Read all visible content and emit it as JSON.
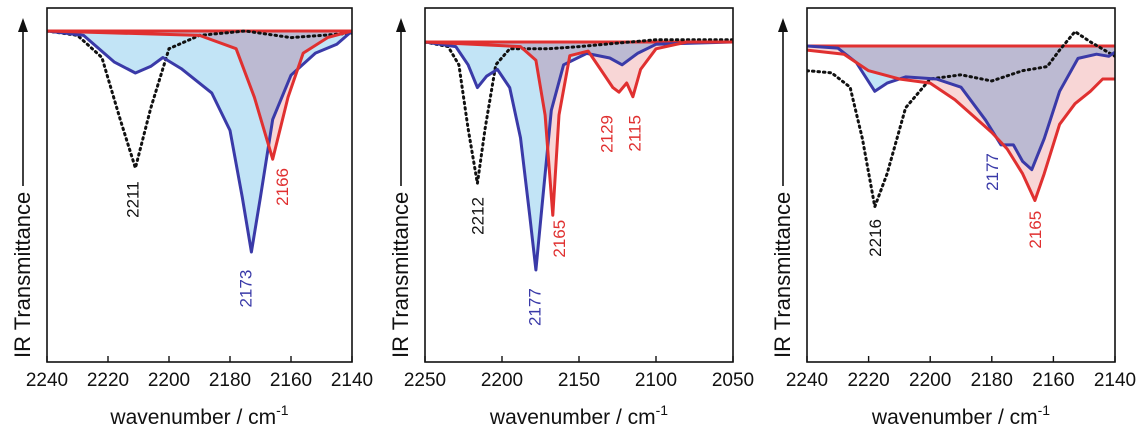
{
  "colors": {
    "blue": "#3a3aa8",
    "red": "#e03030",
    "black": "#111111",
    "blue_fill": "#bfe3f5",
    "red_fill": "#f6c8c8",
    "overlap_fill": "#b7b7d2"
  },
  "chart_data": [
    {
      "type": "line",
      "xlabel": "wavenumber / cm",
      "xlabel_sup": "-1",
      "ylabel": "IR Transmittance",
      "xlim": [
        2240,
        2140
      ],
      "ticks": [
        2240,
        2220,
        2200,
        2180,
        2160,
        2140
      ],
      "tick_labels": [
        "2240",
        "2220",
        "2200",
        "2180",
        "2160",
        "2140"
      ],
      "baseline": 0,
      "series": [
        {
          "color": "black",
          "style": "dotted",
          "points": [
            [
              2240,
              0
            ],
            [
              2230,
              -0.02
            ],
            [
              2222,
              -0.12
            ],
            [
              2216,
              -0.4
            ],
            [
              2211,
              -0.62
            ],
            [
              2206,
              -0.35
            ],
            [
              2200,
              -0.08
            ],
            [
              2190,
              -0.02
            ],
            [
              2175,
              0
            ],
            [
              2160,
              -0.03
            ],
            [
              2140,
              -0.01
            ]
          ]
        },
        {
          "color": "red",
          "style": "solid",
          "fill": "red_fill",
          "points": [
            [
              2240,
              0
            ],
            [
              2190,
              -0.02
            ],
            [
              2178,
              -0.08
            ],
            [
              2172,
              -0.3
            ],
            [
              2166,
              -0.58
            ],
            [
              2161,
              -0.3
            ],
            [
              2156,
              -0.1
            ],
            [
              2148,
              -0.03
            ],
            [
              2140,
              0
            ]
          ]
        },
        {
          "color": "blue",
          "style": "solid",
          "fill": "blue_fill",
          "points": [
            [
              2240,
              0
            ],
            [
              2228,
              -0.02
            ],
            [
              2218,
              -0.14
            ],
            [
              2211,
              -0.19
            ],
            [
              2206,
              -0.16
            ],
            [
              2202,
              -0.12
            ],
            [
              2196,
              -0.17
            ],
            [
              2186,
              -0.28
            ],
            [
              2180,
              -0.45
            ],
            [
              2176,
              -0.75
            ],
            [
              2173,
              -1.0
            ],
            [
              2170,
              -0.75
            ],
            [
              2166,
              -0.4
            ],
            [
              2160,
              -0.2
            ],
            [
              2152,
              -0.1
            ],
            [
              2145,
              -0.06
            ],
            [
              2140,
              0
            ]
          ]
        }
      ],
      "annotations": [
        {
          "text": "2211",
          "color": "black",
          "x": 2212,
          "y": -0.68
        },
        {
          "text": "2166",
          "color": "red",
          "x": 2163,
          "y": -0.62
        },
        {
          "text": "2173",
          "color": "blue",
          "x": 2175,
          "y": -1.08
        }
      ]
    },
    {
      "type": "line",
      "xlabel": "wavenumber / cm",
      "xlabel_sup": "-1",
      "ylabel": "IR Transmittance",
      "xlim": [
        2250,
        2050
      ],
      "ticks": [
        2250,
        2200,
        2150,
        2100,
        2050
      ],
      "tick_labels": [
        "2250",
        "2200",
        "2150",
        "2100",
        "2050"
      ],
      "baseline": 0,
      "series": [
        {
          "color": "black",
          "style": "dotted",
          "points": [
            [
              2250,
              0
            ],
            [
              2235,
              -0.02
            ],
            [
              2228,
              -0.1
            ],
            [
              2222,
              -0.38
            ],
            [
              2216,
              -0.62
            ],
            [
              2211,
              -0.38
            ],
            [
              2204,
              -0.1
            ],
            [
              2195,
              -0.03
            ],
            [
              2170,
              -0.03
            ],
            [
              2150,
              -0.02
            ],
            [
              2100,
              0.01
            ],
            [
              2050,
              0.01
            ]
          ]
        },
        {
          "color": "red",
          "style": "solid",
          "fill": "red_fill",
          "points": [
            [
              2250,
              0
            ],
            [
              2188,
              -0.02
            ],
            [
              2178,
              -0.08
            ],
            [
              2172,
              -0.32
            ],
            [
              2167,
              -0.76
            ],
            [
              2163,
              -0.32
            ],
            [
              2156,
              -0.06
            ],
            [
              2144,
              -0.04
            ],
            [
              2136,
              -0.12
            ],
            [
              2128,
              -0.2
            ],
            [
              2124,
              -0.22
            ],
            [
              2119,
              -0.18
            ],
            [
              2115,
              -0.24
            ],
            [
              2110,
              -0.12
            ],
            [
              2100,
              -0.03
            ],
            [
              2080,
              0
            ],
            [
              2050,
              0
            ]
          ]
        },
        {
          "color": "blue",
          "style": "solid",
          "fill": "blue_fill",
          "points": [
            [
              2250,
              0
            ],
            [
              2230,
              -0.02
            ],
            [
              2222,
              -0.1
            ],
            [
              2216,
              -0.2
            ],
            [
              2210,
              -0.15
            ],
            [
              2203,
              -0.12
            ],
            [
              2195,
              -0.2
            ],
            [
              2188,
              -0.42
            ],
            [
              2182,
              -0.76
            ],
            [
              2178,
              -1.0
            ],
            [
              2174,
              -0.72
            ],
            [
              2168,
              -0.3
            ],
            [
              2160,
              -0.1
            ],
            [
              2145,
              -0.05
            ],
            [
              2130,
              -0.07
            ],
            [
              2122,
              -0.1
            ],
            [
              2112,
              -0.05
            ],
            [
              2100,
              -0.01
            ],
            [
              2050,
              0
            ]
          ]
        }
      ],
      "annotations": [
        {
          "text": "2212",
          "color": "black",
          "x": 2216,
          "y": -0.68
        },
        {
          "text": "2177",
          "color": "blue",
          "x": 2179,
          "y": -1.08
        },
        {
          "text": "2165",
          "color": "red",
          "x": 2163,
          "y": -0.78
        },
        {
          "text": "2129",
          "color": "red",
          "x": 2132,
          "y": -0.32
        },
        {
          "text": "2115",
          "color": "red",
          "x": 2114,
          "y": -0.32
        }
      ]
    },
    {
      "type": "line",
      "xlabel": "wavenumber / cm",
      "xlabel_sup": "-1",
      "ylabel": "IR Transmittance",
      "xlim": [
        2240,
        2140
      ],
      "ticks": [
        2240,
        2220,
        2200,
        2180,
        2160,
        2140
      ],
      "tick_labels": [
        "2240",
        "2220",
        "2200",
        "2180",
        "2160",
        "2140"
      ],
      "baseline": 0,
      "series": [
        {
          "color": "black",
          "style": "dotted",
          "points": [
            [
              2240,
              -0.12
            ],
            [
              2232,
              -0.13
            ],
            [
              2226,
              -0.2
            ],
            [
              2222,
              -0.45
            ],
            [
              2218,
              -0.78
            ],
            [
              2214,
              -0.62
            ],
            [
              2208,
              -0.3
            ],
            [
              2200,
              -0.16
            ],
            [
              2190,
              -0.14
            ],
            [
              2180,
              -0.17
            ],
            [
              2170,
              -0.12
            ],
            [
              2162,
              -0.1
            ],
            [
              2158,
              -0.02
            ],
            [
              2153,
              0.07
            ],
            [
              2148,
              0.02
            ],
            [
              2140,
              -0.05
            ]
          ]
        },
        {
          "color": "red",
          "style": "solid",
          "fill": "red_fill",
          "points": [
            [
              2240,
              -0.02
            ],
            [
              2228,
              -0.04
            ],
            [
              2220,
              -0.12
            ],
            [
              2210,
              -0.16
            ],
            [
              2200,
              -0.18
            ],
            [
              2192,
              -0.26
            ],
            [
              2186,
              -0.34
            ],
            [
              2180,
              -0.42
            ],
            [
              2175,
              -0.5
            ],
            [
              2170,
              -0.62
            ],
            [
              2166,
              -0.75
            ],
            [
              2163,
              -0.62
            ],
            [
              2158,
              -0.38
            ],
            [
              2153,
              -0.28
            ],
            [
              2148,
              -0.22
            ],
            [
              2144,
              -0.16
            ],
            [
              2140,
              -0.16
            ]
          ]
        },
        {
          "color": "blue",
          "style": "solid",
          "fill": "blue_fill",
          "points": [
            [
              2240,
              0
            ],
            [
              2230,
              -0.01
            ],
            [
              2224,
              -0.08
            ],
            [
              2218,
              -0.22
            ],
            [
              2214,
              -0.18
            ],
            [
              2208,
              -0.15
            ],
            [
              2198,
              -0.16
            ],
            [
              2190,
              -0.2
            ],
            [
              2182,
              -0.36
            ],
            [
              2177,
              -0.48
            ],
            [
              2173,
              -0.48
            ],
            [
              2170,
              -0.56
            ],
            [
              2167,
              -0.6
            ],
            [
              2163,
              -0.45
            ],
            [
              2158,
              -0.22
            ],
            [
              2152,
              -0.06
            ],
            [
              2146,
              -0.04
            ],
            [
              2142,
              -0.05
            ],
            [
              2140,
              -0.03
            ]
          ]
        }
      ],
      "annotations": [
        {
          "text": "2216",
          "color": "black",
          "x": 2218,
          "y": -0.84
        },
        {
          "text": "2177",
          "color": "blue",
          "x": 2180,
          "y": -0.52
        },
        {
          "text": "2165",
          "color": "red",
          "x": 2166,
          "y": -0.8
        }
      ]
    }
  ]
}
